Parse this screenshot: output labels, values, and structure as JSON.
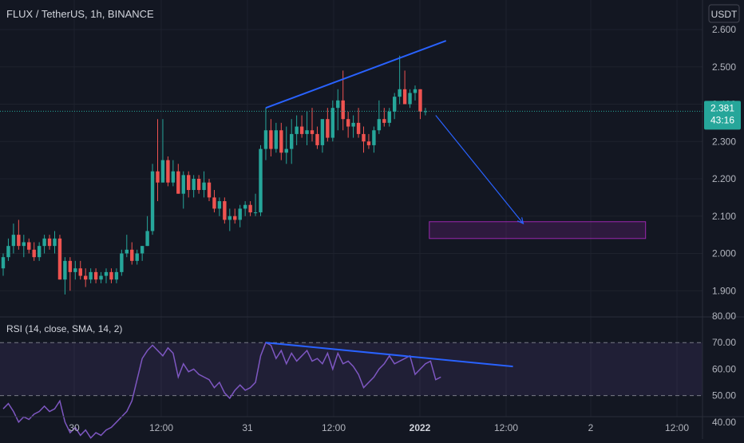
{
  "symbol_title": "FLUX / TetherUS, 1h, BINANCE",
  "currency": "USDT",
  "price_axis_ticks": [
    "2.600",
    "2.500",
    "2.400",
    "2.300",
    "2.200",
    "2.100",
    "2.000",
    "1.900"
  ],
  "rsi_axis_ticks": [
    "80.00",
    "70.00",
    "60.00",
    "50.00",
    "40.00"
  ],
  "time_axis_ticks": [
    "30",
    "12:00",
    "31",
    "12:00",
    "2022",
    "12:00",
    "2",
    "12:00"
  ],
  "last_price": "2.381",
  "countdown": "43:16",
  "rsi_label": "RSI (14, close, SMA, 14, 2)",
  "colors": {
    "background": "#131722",
    "up": "#26a69a",
    "down": "#ef5350",
    "trendline": "#2962ff",
    "rsi_line": "#7e57c2",
    "target_box": "#9c27b0"
  },
  "chart_data": [
    {
      "type": "candlestick",
      "title": "FLUX / TetherUS, 1h, BINANCE",
      "ylim": [
        1.86,
        2.66
      ],
      "x_ticks": [
        "30",
        "12:00",
        "31",
        "12:00",
        "2022",
        "12:00",
        "2",
        "12:00"
      ],
      "y_ticks": [
        2.6,
        2.5,
        2.4,
        2.3,
        2.2,
        2.1,
        2.0,
        1.9
      ],
      "last_price": 2.381,
      "series": [
        {
          "values": [
            {
              "o": 1.96,
              "h": 2.0,
              "l": 1.94,
              "c": 1.99
            },
            {
              "o": 1.99,
              "h": 2.04,
              "l": 1.98,
              "c": 2.02
            },
            {
              "o": 2.02,
              "h": 2.08,
              "l": 2.0,
              "c": 2.05
            },
            {
              "o": 2.05,
              "h": 2.09,
              "l": 2.01,
              "c": 2.02
            },
            {
              "o": 2.02,
              "h": 2.05,
              "l": 1.99,
              "c": 2.03
            },
            {
              "o": 2.03,
              "h": 2.04,
              "l": 2.0,
              "c": 2.01
            },
            {
              "o": 2.01,
              "h": 2.03,
              "l": 1.98,
              "c": 1.99
            },
            {
              "o": 1.99,
              "h": 2.03,
              "l": 1.98,
              "c": 2.02
            },
            {
              "o": 2.02,
              "h": 2.05,
              "l": 2.0,
              "c": 2.04
            },
            {
              "o": 2.04,
              "h": 2.05,
              "l": 2.01,
              "c": 2.02
            },
            {
              "o": 2.02,
              "h": 2.06,
              "l": 2.0,
              "c": 2.04
            },
            {
              "o": 2.04,
              "h": 2.05,
              "l": 1.93,
              "c": 1.93
            },
            {
              "o": 1.93,
              "h": 1.99,
              "l": 1.89,
              "c": 1.98
            },
            {
              "o": 1.98,
              "h": 1.99,
              "l": 1.9,
              "c": 1.95
            },
            {
              "o": 1.95,
              "h": 1.98,
              "l": 1.93,
              "c": 1.96
            },
            {
              "o": 1.96,
              "h": 1.98,
              "l": 1.93,
              "c": 1.94
            },
            {
              "o": 1.94,
              "h": 1.96,
              "l": 1.91,
              "c": 1.93
            },
            {
              "o": 1.93,
              "h": 1.96,
              "l": 1.92,
              "c": 1.95
            },
            {
              "o": 1.95,
              "h": 1.96,
              "l": 1.92,
              "c": 1.93
            },
            {
              "o": 1.93,
              "h": 1.95,
              "l": 1.92,
              "c": 1.94
            },
            {
              "o": 1.94,
              "h": 1.96,
              "l": 1.92,
              "c": 1.95
            },
            {
              "o": 1.95,
              "h": 1.96,
              "l": 1.92,
              "c": 1.93
            },
            {
              "o": 1.93,
              "h": 1.96,
              "l": 1.92,
              "c": 1.95
            },
            {
              "o": 1.95,
              "h": 2.01,
              "l": 1.94,
              "c": 2.0
            },
            {
              "o": 2.0,
              "h": 2.05,
              "l": 1.99,
              "c": 2.01
            },
            {
              "o": 2.01,
              "h": 2.03,
              "l": 1.97,
              "c": 1.98
            },
            {
              "o": 1.98,
              "h": 2.01,
              "l": 1.97,
              "c": 2.0
            },
            {
              "o": 2.0,
              "h": 2.02,
              "l": 1.98,
              "c": 2.02
            },
            {
              "o": 2.02,
              "h": 2.1,
              "l": 2.02,
              "c": 2.06
            },
            {
              "o": 2.06,
              "h": 2.24,
              "l": 2.05,
              "c": 2.22
            },
            {
              "o": 2.22,
              "h": 2.36,
              "l": 2.14,
              "c": 2.19
            },
            {
              "o": 2.19,
              "h": 2.36,
              "l": 2.19,
              "c": 2.25
            },
            {
              "o": 2.25,
              "h": 2.26,
              "l": 2.18,
              "c": 2.19
            },
            {
              "o": 2.19,
              "h": 2.25,
              "l": 2.18,
              "c": 2.22
            },
            {
              "o": 2.22,
              "h": 2.24,
              "l": 2.16,
              "c": 2.16
            },
            {
              "o": 2.16,
              "h": 2.22,
              "l": 2.12,
              "c": 2.21
            },
            {
              "o": 2.21,
              "h": 2.22,
              "l": 2.15,
              "c": 2.17
            },
            {
              "o": 2.17,
              "h": 2.21,
              "l": 2.15,
              "c": 2.2
            },
            {
              "o": 2.2,
              "h": 2.21,
              "l": 2.16,
              "c": 2.17
            },
            {
              "o": 2.17,
              "h": 2.22,
              "l": 2.15,
              "c": 2.19
            },
            {
              "o": 2.19,
              "h": 2.2,
              "l": 2.14,
              "c": 2.15
            },
            {
              "o": 2.15,
              "h": 2.17,
              "l": 2.11,
              "c": 2.12
            },
            {
              "o": 2.12,
              "h": 2.15,
              "l": 2.1,
              "c": 2.14
            },
            {
              "o": 2.14,
              "h": 2.15,
              "l": 2.08,
              "c": 2.09
            },
            {
              "o": 2.09,
              "h": 2.12,
              "l": 2.06,
              "c": 2.1
            },
            {
              "o": 2.1,
              "h": 2.12,
              "l": 2.08,
              "c": 2.09
            },
            {
              "o": 2.09,
              "h": 2.13,
              "l": 2.07,
              "c": 2.12
            },
            {
              "o": 2.12,
              "h": 2.14,
              "l": 2.1,
              "c": 2.13
            },
            {
              "o": 2.13,
              "h": 2.14,
              "l": 2.1,
              "c": 2.11
            },
            {
              "o": 2.11,
              "h": 2.16,
              "l": 2.1,
              "c": 2.11
            },
            {
              "o": 2.11,
              "h": 2.29,
              "l": 2.1,
              "c": 2.28
            },
            {
              "o": 2.28,
              "h": 2.39,
              "l": 2.25,
              "c": 2.33
            },
            {
              "o": 2.33,
              "h": 2.36,
              "l": 2.26,
              "c": 2.28
            },
            {
              "o": 2.28,
              "h": 2.35,
              "l": 2.27,
              "c": 2.33
            },
            {
              "o": 2.33,
              "h": 2.35,
              "l": 2.25,
              "c": 2.27
            },
            {
              "o": 2.27,
              "h": 2.34,
              "l": 2.24,
              "c": 2.28
            },
            {
              "o": 2.28,
              "h": 2.36,
              "l": 2.24,
              "c": 2.32
            },
            {
              "o": 2.32,
              "h": 2.37,
              "l": 2.29,
              "c": 2.34
            },
            {
              "o": 2.34,
              "h": 2.37,
              "l": 2.31,
              "c": 2.32
            },
            {
              "o": 2.32,
              "h": 2.38,
              "l": 2.29,
              "c": 2.33
            },
            {
              "o": 2.33,
              "h": 2.39,
              "l": 2.3,
              "c": 2.32
            },
            {
              "o": 2.32,
              "h": 2.34,
              "l": 2.28,
              "c": 2.29
            },
            {
              "o": 2.29,
              "h": 2.35,
              "l": 2.27,
              "c": 2.36
            },
            {
              "o": 2.36,
              "h": 2.39,
              "l": 2.3,
              "c": 2.31
            },
            {
              "o": 2.31,
              "h": 2.41,
              "l": 2.3,
              "c": 2.39
            },
            {
              "o": 2.39,
              "h": 2.44,
              "l": 2.33,
              "c": 2.41
            },
            {
              "o": 2.41,
              "h": 2.49,
              "l": 2.33,
              "c": 2.36
            },
            {
              "o": 2.36,
              "h": 2.38,
              "l": 2.31,
              "c": 2.34
            },
            {
              "o": 2.34,
              "h": 2.37,
              "l": 2.31,
              "c": 2.35
            },
            {
              "o": 2.35,
              "h": 2.39,
              "l": 2.31,
              "c": 2.32
            },
            {
              "o": 2.32,
              "h": 2.34,
              "l": 2.27,
              "c": 2.3
            },
            {
              "o": 2.3,
              "h": 2.32,
              "l": 2.28,
              "c": 2.29
            },
            {
              "o": 2.29,
              "h": 2.34,
              "l": 2.27,
              "c": 2.33
            },
            {
              "o": 2.33,
              "h": 2.41,
              "l": 2.32,
              "c": 2.36
            },
            {
              "o": 2.36,
              "h": 2.39,
              "l": 2.34,
              "c": 2.35
            },
            {
              "o": 2.35,
              "h": 2.39,
              "l": 2.34,
              "c": 2.38
            },
            {
              "o": 2.38,
              "h": 2.43,
              "l": 2.36,
              "c": 2.42
            },
            {
              "o": 2.42,
              "h": 2.53,
              "l": 2.4,
              "c": 2.44
            },
            {
              "o": 2.44,
              "h": 2.49,
              "l": 2.4,
              "c": 2.4
            },
            {
              "o": 2.4,
              "h": 2.44,
              "l": 2.39,
              "c": 2.43
            },
            {
              "o": 2.43,
              "h": 2.45,
              "l": 2.41,
              "c": 2.44
            },
            {
              "o": 2.44,
              "h": 2.44,
              "l": 2.36,
              "c": 2.38
            },
            {
              "o": 2.38,
              "h": 2.39,
              "l": 2.37,
              "c": 2.381
            }
          ]
        }
      ],
      "annotations": [
        {
          "type": "trendline",
          "from_bar": 51,
          "from_value": 2.39,
          "to_bar": 86,
          "to_value": 2.57
        },
        {
          "type": "arrow",
          "from_bar": 84,
          "from_value": 2.37,
          "to_bar": 101,
          "to_value": 2.08
        },
        {
          "type": "zone",
          "from_bar": 84,
          "to_bar": 126,
          "low": 2.04,
          "high": 2.085
        }
      ]
    },
    {
      "type": "line",
      "title": "RSI (14, close, SMA, 14, 2)",
      "ylim": [
        34,
        81
      ],
      "y_ticks": [
        80,
        70,
        60,
        50,
        40
      ],
      "bands": [
        50,
        70
      ],
      "series": [
        {
          "values": [
            45,
            47,
            44,
            40,
            42,
            41,
            43,
            44,
            46,
            44,
            45,
            48,
            40,
            36,
            38,
            35,
            37,
            34,
            36,
            35,
            37,
            38,
            40,
            42,
            44,
            48,
            56,
            64,
            67,
            69,
            67,
            65,
            68,
            66,
            57,
            62,
            59,
            60,
            58,
            57,
            56,
            53,
            55,
            51,
            49,
            52,
            54,
            52,
            53,
            55,
            65,
            70,
            69,
            64,
            67,
            62,
            66,
            63,
            65,
            67,
            63,
            64,
            62,
            66,
            60,
            66,
            62,
            63,
            61,
            58,
            53,
            55,
            57,
            60,
            62,
            65,
            62,
            63,
            64,
            65,
            58,
            60,
            62,
            63,
            56,
            57
          ]
        },
        {
          "values": []
        }
      ],
      "annotations": [
        {
          "type": "trendline",
          "from_bar": 51,
          "from_value": 70,
          "to_bar": 99,
          "to_value": 61
        }
      ]
    }
  ]
}
